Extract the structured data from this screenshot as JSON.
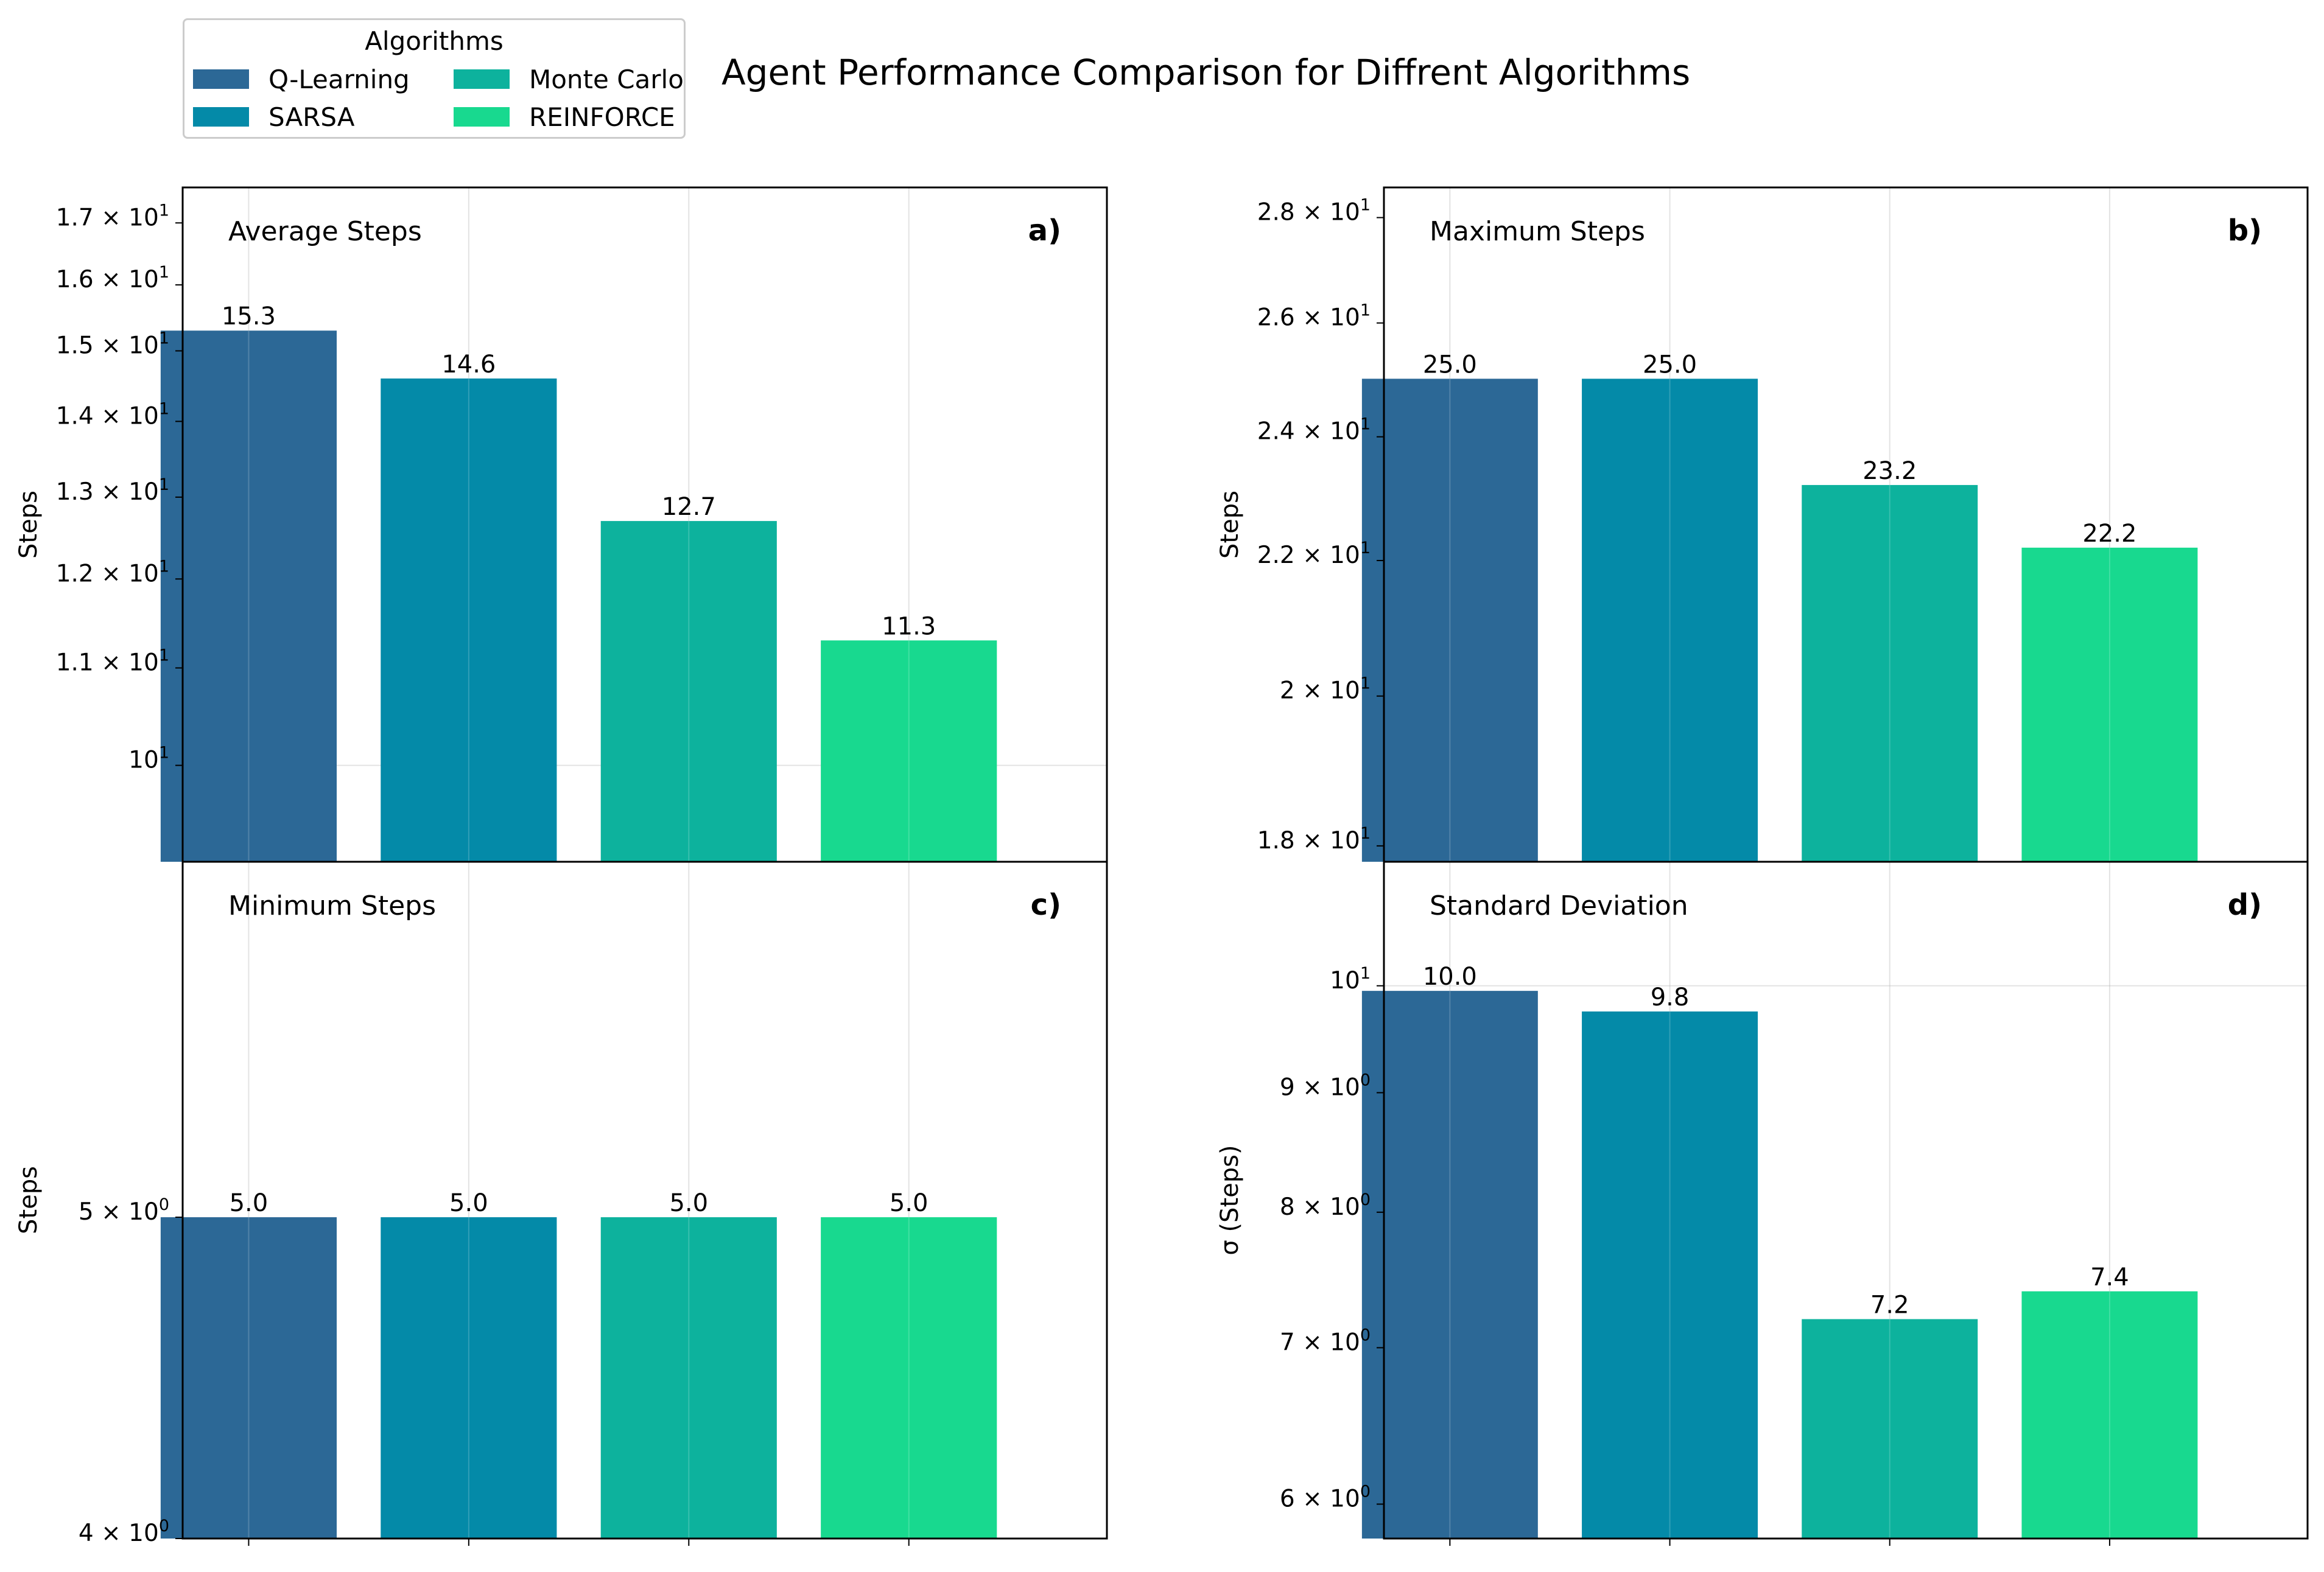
{
  "title": "Agent Performance Comparison for Diffrent Algorithms",
  "legend": {
    "title": "Algorithms",
    "items": [
      {
        "label": "Q-Learning",
        "color": "#2c6896"
      },
      {
        "label": "SARSA",
        "color": "#048aa8"
      },
      {
        "label": "Monte Carlo",
        "color": "#0db29d"
      },
      {
        "label": "REINFORCE",
        "color": "#18d98f"
      }
    ]
  },
  "chart_data": [
    {
      "type": "bar",
      "panel": "a)",
      "title": "Average Steps",
      "ylabel": "Steps",
      "yscale": "log",
      "ylim": [
        9.1,
        17.6
      ],
      "yticks": [
        10,
        11,
        12,
        13,
        14,
        15,
        16,
        17
      ],
      "ytick_labels": [
        {
          "m": "",
          "e": "1"
        },
        {
          "m": "1.1 × 10",
          "e": "1"
        },
        {
          "m": "1.2 × 10",
          "e": "1"
        },
        {
          "m": "1.3 × 10",
          "e": "1"
        },
        {
          "m": "1.4 × 10",
          "e": "1"
        },
        {
          "m": "1.5 × 10",
          "e": "1"
        },
        {
          "m": "1.6 × 10",
          "e": "1"
        },
        {
          "m": "1.7 × 10",
          "e": "1"
        }
      ],
      "categories": [
        "Q-Learning",
        "SARSA",
        "Monte Carlo",
        "REINFORCE"
      ],
      "values": [
        15.3,
        14.6,
        12.7,
        11.3
      ],
      "value_labels": [
        "15.3",
        "14.6",
        "12.7",
        "11.3"
      ]
    },
    {
      "type": "bar",
      "panel": "b)",
      "title": "Maximum Steps",
      "ylabel": "Steps",
      "yscale": "log",
      "ylim": [
        17.8,
        28.6
      ],
      "yticks": [
        18,
        20,
        22,
        24,
        26,
        28
      ],
      "ytick_labels": [
        {
          "m": "1.8 × 10",
          "e": "1"
        },
        {
          "m": "2 × 10",
          "e": "1"
        },
        {
          "m": "2.2 × 10",
          "e": "1"
        },
        {
          "m": "2.4 × 10",
          "e": "1"
        },
        {
          "m": "2.6 × 10",
          "e": "1"
        },
        {
          "m": "2.8 × 10",
          "e": "1"
        }
      ],
      "categories": [
        "Q-Learning",
        "SARSA",
        "Monte Carlo",
        "REINFORCE"
      ],
      "values": [
        25.0,
        25.0,
        23.2,
        22.2
      ],
      "value_labels": [
        "25.0",
        "25.0",
        "23.2",
        "22.2"
      ]
    },
    {
      "type": "bar",
      "panel": "c)",
      "title": "Minimum Steps",
      "ylabel": "Steps",
      "yscale": "log",
      "ylim": [
        4.0,
        6.4
      ],
      "yticks": [
        4,
        5
      ],
      "ytick_labels": [
        {
          "m": "4 × 10",
          "e": "0"
        },
        {
          "m": "5 × 10",
          "e": "0"
        }
      ],
      "categories": [
        "Q-Learning",
        "SARSA",
        "Monte Carlo",
        "REINFORCE"
      ],
      "values": [
        5.0,
        5.0,
        5.0,
        5.0
      ],
      "value_labels": [
        "5.0",
        "5.0",
        "5.0",
        "5.0"
      ]
    },
    {
      "type": "bar",
      "panel": "d)",
      "title": "Standard Deviation",
      "ylabel": "σ (Steps)",
      "yscale": "log",
      "ylim": [
        5.8,
        11.3
      ],
      "yticks": [
        6,
        7,
        8,
        9,
        10
      ],
      "ytick_labels": [
        {
          "m": "6 × 10",
          "e": "0"
        },
        {
          "m": "7 × 10",
          "e": "0"
        },
        {
          "m": "8 × 10",
          "e": "0"
        },
        {
          "m": "9 × 10",
          "e": "0"
        },
        {
          "m": "",
          "e": "1"
        }
      ],
      "categories": [
        "Q-Learning",
        "SARSA",
        "Monte Carlo",
        "REINFORCE"
      ],
      "values": [
        9.95,
        9.75,
        7.2,
        7.4
      ],
      "value_labels": [
        "10.0",
        "9.8",
        "7.2",
        "7.4"
      ]
    }
  ]
}
